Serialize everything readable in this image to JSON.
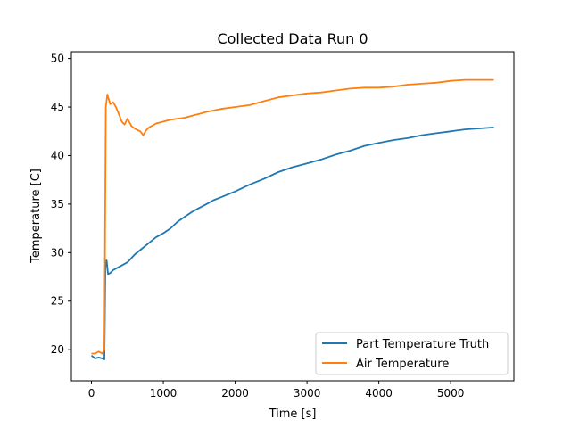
{
  "colors": {
    "part": "#1f77b4",
    "air": "#ff7f0e",
    "axis": "#000000",
    "background": "#ffffff"
  },
  "chart_data": {
    "type": "line",
    "title": "Collected Data Run 0",
    "xlabel": "Time [s]",
    "ylabel": "Temperature [C]",
    "xlim": [
      -280,
      5880
    ],
    "ylim": [
      16.8,
      50.7
    ],
    "xticks": [
      0,
      1000,
      2000,
      3000,
      4000,
      5000
    ],
    "yticks": [
      20,
      25,
      30,
      35,
      40,
      45,
      50
    ],
    "grid": false,
    "legend_position": "lower-right",
    "series": [
      {
        "name": "Part Temperature Truth",
        "color": "#1f77b4",
        "x": [
          0,
          50,
          100,
          150,
          180,
          195,
          210,
          230,
          260,
          300,
          400,
          500,
          600,
          700,
          800,
          900,
          1000,
          1100,
          1200,
          1300,
          1400,
          1500,
          1600,
          1700,
          1800,
          1900,
          2000,
          2200,
          2400,
          2600,
          2800,
          3000,
          3200,
          3400,
          3600,
          3800,
          4000,
          4200,
          4400,
          4600,
          4800,
          5000,
          5200,
          5400,
          5600
        ],
        "y": [
          19.4,
          19.1,
          19.2,
          19.1,
          19.0,
          28.5,
          29.2,
          27.8,
          27.9,
          28.2,
          28.6,
          29.0,
          29.8,
          30.4,
          31.0,
          31.6,
          32.0,
          32.5,
          33.2,
          33.7,
          34.2,
          34.6,
          35.0,
          35.4,
          35.7,
          36.0,
          36.3,
          37.0,
          37.6,
          38.3,
          38.8,
          39.2,
          39.6,
          40.1,
          40.5,
          41.0,
          41.3,
          41.6,
          41.8,
          42.1,
          42.3,
          42.5,
          42.7,
          42.8,
          42.9
        ]
      },
      {
        "name": "Air Temperature",
        "color": "#ff7f0e",
        "x": [
          0,
          50,
          100,
          150,
          180,
          200,
          220,
          260,
          300,
          340,
          380,
          420,
          460,
          500,
          560,
          620,
          680,
          720,
          760,
          800,
          900,
          1000,
          1100,
          1200,
          1300,
          1400,
          1500,
          1600,
          1800,
          2000,
          2200,
          2400,
          2600,
          2800,
          3000,
          3200,
          3400,
          3600,
          3800,
          4000,
          4200,
          4400,
          4600,
          4800,
          5000,
          5200,
          5400,
          5600
        ],
        "y": [
          19.6,
          19.6,
          19.8,
          19.6,
          20.0,
          45.0,
          46.3,
          45.3,
          45.5,
          45.0,
          44.3,
          43.5,
          43.2,
          43.8,
          43.0,
          42.7,
          42.5,
          42.1,
          42.6,
          42.9,
          43.3,
          43.5,
          43.7,
          43.8,
          43.9,
          44.1,
          44.3,
          44.5,
          44.8,
          45.0,
          45.2,
          45.6,
          46.0,
          46.2,
          46.4,
          46.5,
          46.7,
          46.9,
          47.0,
          47.0,
          47.1,
          47.3,
          47.4,
          47.5,
          47.7,
          47.8,
          47.8,
          47.8
        ]
      }
    ]
  }
}
